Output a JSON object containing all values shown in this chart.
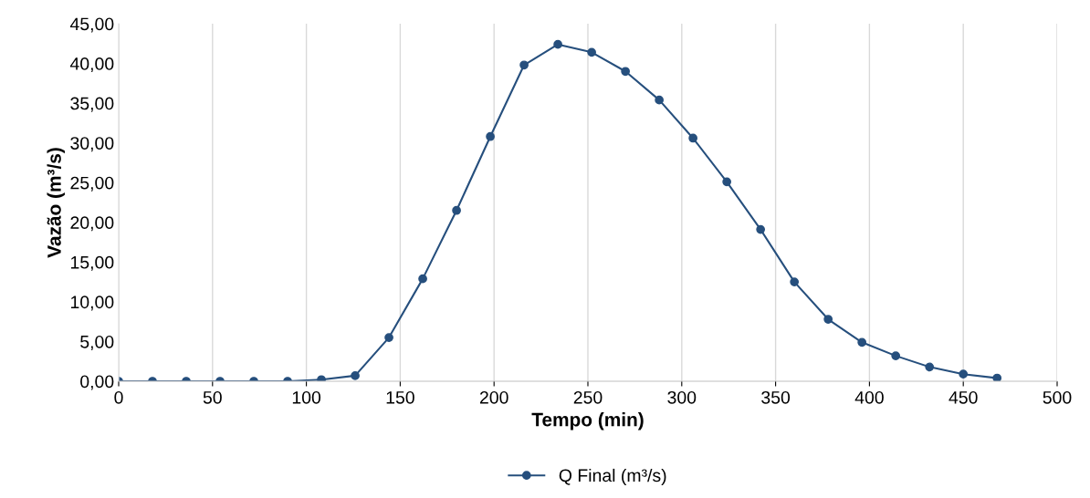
{
  "chart_data": {
    "type": "line",
    "xlabel": "Tempo (min)",
    "ylabel": "Vazão (m³/s)",
    "x": [
      0,
      18,
      36,
      54,
      72,
      90,
      108,
      126,
      144,
      162,
      180,
      198,
      216,
      234,
      252,
      270,
      288,
      306,
      324,
      342,
      360,
      378,
      396,
      414,
      432,
      450,
      468
    ],
    "series": [
      {
        "name": "Q Final (m³/s)",
        "color": "#264f7d",
        "values": [
          0,
          0,
          0,
          0,
          0,
          0,
          0.2,
          0.7,
          5.5,
          12.9,
          21.5,
          30.8,
          39.8,
          42.4,
          41.4,
          39.0,
          35.4,
          30.6,
          25.1,
          19.1,
          12.5,
          7.8,
          4.9,
          3.2,
          1.8,
          0.9,
          0.4
        ]
      }
    ],
    "xlim": [
      0,
      500
    ],
    "xticks": [
      0,
      50,
      100,
      150,
      200,
      250,
      300,
      350,
      400,
      450,
      500
    ],
    "ylim": [
      0,
      45
    ],
    "yticks": [
      {
        "value": 0,
        "label": "0,00"
      },
      {
        "value": 5,
        "label": "5,00"
      },
      {
        "value": 10,
        "label": "10,00"
      },
      {
        "value": 15,
        "label": "15,00"
      },
      {
        "value": 20,
        "label": "20,00"
      },
      {
        "value": 25,
        "label": "25,00"
      },
      {
        "value": 30,
        "label": "30,00"
      },
      {
        "value": 35,
        "label": "35,00"
      },
      {
        "value": 40,
        "label": "40,00"
      },
      {
        "value": 45,
        "label": "45,00"
      }
    ],
    "grid": "x",
    "legend": "bottom",
    "marker": "circle",
    "line_style": "solid"
  }
}
